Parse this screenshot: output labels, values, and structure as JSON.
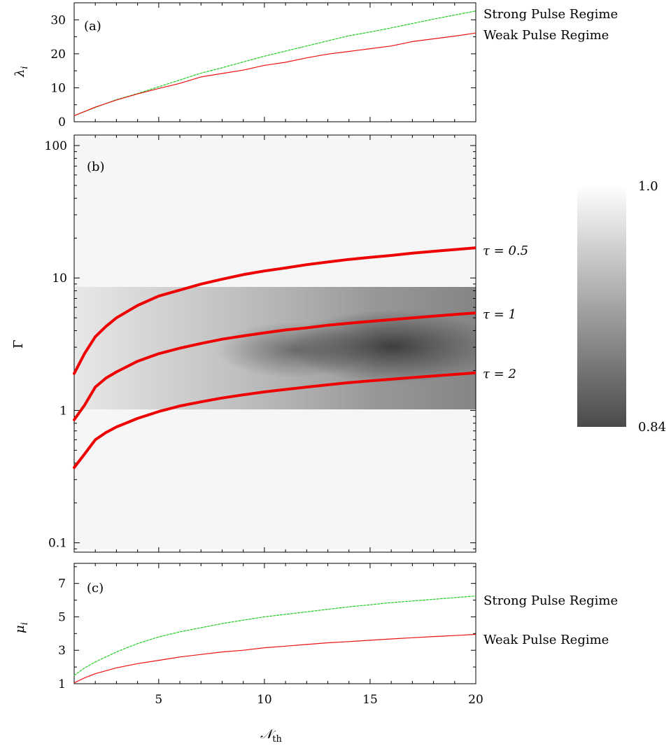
{
  "chart_data": [
    {
      "type": "line",
      "panel_label": "(a)",
      "ylabel_symbol": "λ",
      "ylabel_subscript": "i",
      "x_ticks": [
        5,
        10,
        15,
        20
      ],
      "y_ticks": [
        0,
        10,
        20,
        30
      ],
      "xlim": [
        1,
        20
      ],
      "ylim": [
        0,
        35
      ],
      "series": [
        {
          "name": "Strong Pulse Regime",
          "color": "#22cc22",
          "dashed": true,
          "x": [
            1,
            2,
            3,
            4,
            5,
            6,
            7,
            8,
            9,
            10,
            11,
            12,
            13,
            14,
            15,
            16,
            17,
            18,
            19,
            20
          ],
          "y": [
            1.8,
            4.2,
            6.5,
            8.3,
            10.3,
            12.3,
            14.3,
            15.9,
            17.6,
            19.3,
            20.8,
            22.3,
            23.8,
            25.3,
            26.4,
            27.6,
            28.9,
            30.2,
            31.4,
            32.6
          ]
        },
        {
          "name": "Weak Pulse Regime",
          "color": "#ee1111",
          "dashed": false,
          "x": [
            1,
            2,
            3,
            4,
            5,
            6,
            7,
            8,
            9,
            10,
            11,
            12,
            13,
            14,
            15,
            16,
            17,
            18,
            19,
            20
          ],
          "y": [
            1.8,
            4.3,
            6.4,
            8.2,
            9.8,
            11.3,
            13.2,
            14.2,
            15.2,
            16.6,
            17.5,
            18.8,
            19.9,
            20.7,
            21.5,
            22.3,
            23.6,
            24.4,
            25.2,
            26.1
          ]
        }
      ]
    },
    {
      "type": "heatmap",
      "panel_label": "(b)",
      "ylabel": "Γ",
      "y_scale": "log",
      "x_ticks": [
        5,
        10,
        15,
        20
      ],
      "y_ticks": [
        "0.1",
        "1",
        "10",
        "100"
      ],
      "xlim": [
        1,
        20
      ],
      "ylim": [
        0.085,
        120
      ],
      "colorbar": {
        "min_label": "0.84",
        "max_label": "1.0",
        "min": 0.84,
        "max": 1.0,
        "dark": "#4a4a4a",
        "light": "#ffffff"
      },
      "series": [
        {
          "name": "τ = 0.5",
          "color": "#ee0000",
          "x": [
            1,
            1.5,
            2,
            2.5,
            3,
            4,
            5,
            6,
            7,
            8,
            9,
            10,
            11,
            12,
            13,
            14,
            15,
            16,
            17,
            18,
            19,
            20
          ],
          "y": [
            1.9,
            2.7,
            3.6,
            4.3,
            5.0,
            6.2,
            7.3,
            8.1,
            9.0,
            9.8,
            10.6,
            11.3,
            11.9,
            12.6,
            13.2,
            13.8,
            14.3,
            14.8,
            15.4,
            15.9,
            16.4,
            16.9
          ]
        },
        {
          "name": "τ = 1",
          "color": "#ee0000",
          "x": [
            1,
            1.5,
            2,
            2.5,
            3,
            4,
            5,
            6,
            7,
            8,
            9,
            10,
            11,
            12,
            13,
            14,
            15,
            16,
            17,
            18,
            19,
            20
          ],
          "y": [
            0.85,
            1.1,
            1.5,
            1.75,
            1.95,
            2.35,
            2.68,
            2.95,
            3.2,
            3.45,
            3.65,
            3.85,
            4.05,
            4.2,
            4.4,
            4.55,
            4.7,
            4.85,
            5.0,
            5.15,
            5.3,
            5.45
          ]
        },
        {
          "name": "τ = 2",
          "color": "#ee0000",
          "x": [
            1,
            1.5,
            2,
            2.5,
            3,
            4,
            5,
            6,
            7,
            8,
            9,
            10,
            11,
            12,
            13,
            14,
            15,
            16,
            17,
            18,
            19,
            20
          ],
          "y": [
            0.37,
            0.47,
            0.6,
            0.68,
            0.75,
            0.87,
            0.98,
            1.08,
            1.16,
            1.24,
            1.31,
            1.38,
            1.44,
            1.5,
            1.56,
            1.62,
            1.67,
            1.72,
            1.77,
            1.82,
            1.87,
            1.92
          ]
        }
      ]
    },
    {
      "type": "line",
      "panel_label": "(c)",
      "xlabel_symbol": "𝒩",
      "xlabel_subscript": "th",
      "ylabel_symbol": "μ",
      "ylabel_subscript": "i",
      "x_ticks": [
        5,
        10,
        15,
        20
      ],
      "y_ticks": [
        1,
        3,
        5,
        7
      ],
      "xlim": [
        1,
        20
      ],
      "ylim": [
        1,
        8.2
      ],
      "series": [
        {
          "name": "Strong Pulse Regime",
          "color": "#22cc22",
          "dashed": true,
          "x": [
            1,
            1.5,
            2,
            3,
            4,
            5,
            6,
            7,
            8,
            9,
            10,
            11,
            12,
            13,
            14,
            15,
            16,
            17,
            18,
            19,
            20
          ],
          "y": [
            1.5,
            1.95,
            2.3,
            2.9,
            3.4,
            3.8,
            4.1,
            4.35,
            4.6,
            4.8,
            5.0,
            5.15,
            5.3,
            5.45,
            5.6,
            5.72,
            5.85,
            5.95,
            6.05,
            6.15,
            6.25
          ]
        },
        {
          "name": "Weak Pulse Regime",
          "color": "#ee1111",
          "dashed": false,
          "x": [
            1,
            1.5,
            2,
            3,
            4,
            5,
            6,
            7,
            8,
            9,
            10,
            11,
            12,
            13,
            14,
            15,
            16,
            17,
            18,
            19,
            20
          ],
          "y": [
            1.05,
            1.35,
            1.6,
            1.95,
            2.2,
            2.4,
            2.6,
            2.75,
            2.9,
            3.0,
            3.15,
            3.25,
            3.35,
            3.45,
            3.52,
            3.6,
            3.68,
            3.75,
            3.82,
            3.88,
            3.95
          ]
        }
      ]
    }
  ]
}
